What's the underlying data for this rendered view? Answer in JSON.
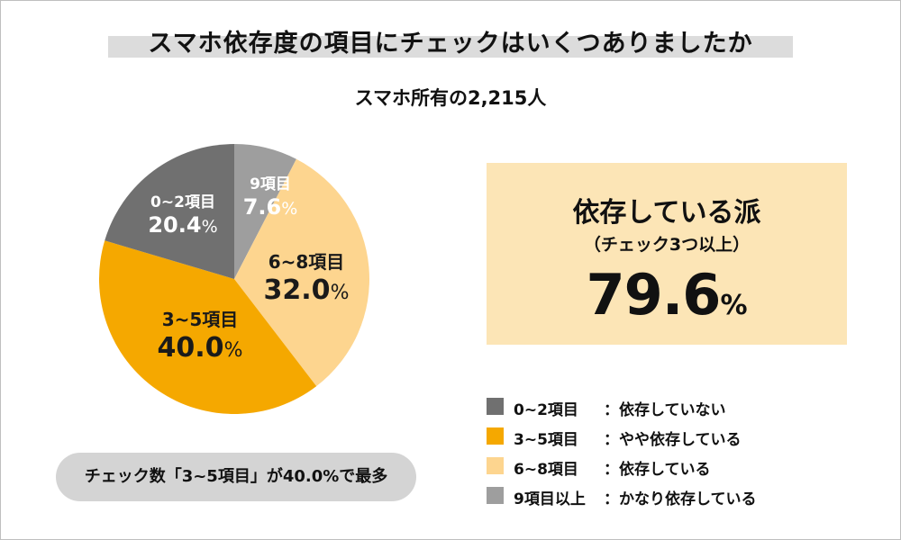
{
  "header": {
    "title": "スマホ依存度の項目にチェックはいくつありましたか",
    "subtitle": "スマホ所有の2,215人"
  },
  "chart_data": {
    "type": "pie",
    "slices": [
      {
        "label": "9項目",
        "value": 7.6,
        "display": "7.6",
        "color": "#9e9e9e"
      },
      {
        "label": "6~8項目",
        "value": 32.0,
        "display": "32.0",
        "color": "#fdd58f"
      },
      {
        "label": "3~5項目",
        "value": 40.0,
        "display": "40.0",
        "color": "#f5a800"
      },
      {
        "label": "0~2項目",
        "value": 20.4,
        "display": "20.4",
        "color": "#707070"
      }
    ],
    "percent_sign": "%"
  },
  "highlight": {
    "heading": "依存している派",
    "subheading": "（チェック3つ以上）",
    "value": "79.6",
    "percent_sign": "%"
  },
  "legend": {
    "items": [
      {
        "range": "0~2項目",
        "description": "：依存していない",
        "color": "#707070"
      },
      {
        "range": "3~5項目",
        "description": "：やや依存している",
        "color": "#f5a800"
      },
      {
        "range": "6~8項目",
        "description": "：依存している",
        "color": "#fdd58f"
      },
      {
        "range": "9項目以上",
        "description": "：かなり依存している",
        "color": "#9e9e9e"
      }
    ]
  },
  "note": {
    "text": "チェック数「3~5項目」が40.0%で最多"
  }
}
